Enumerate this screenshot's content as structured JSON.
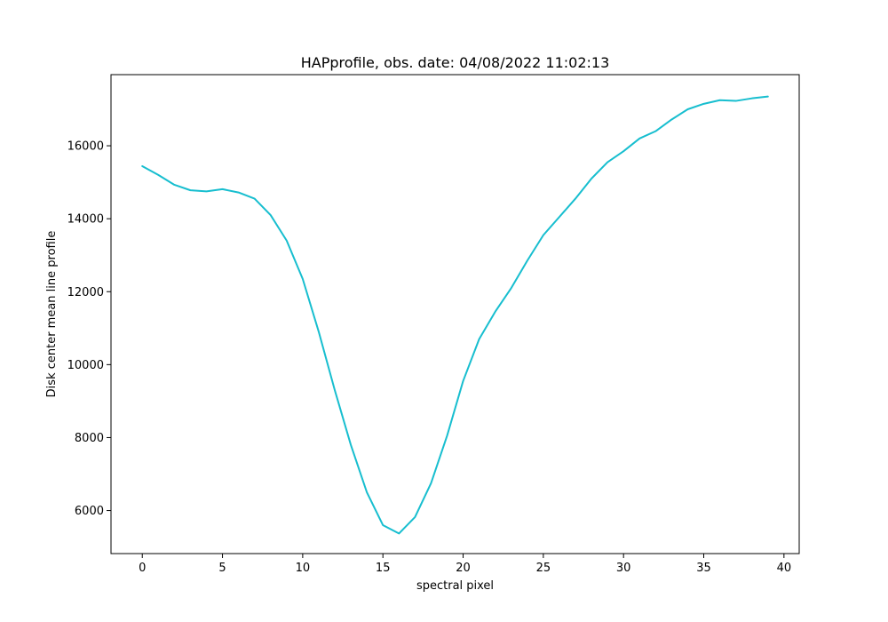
{
  "chart_data": {
    "type": "line",
    "title": "HAPprofile, obs. date: 04/08/2022 11:02:13",
    "xlabel": "spectral pixel",
    "ylabel": "Disk center mean line profile",
    "xlim": [
      -1.95,
      40.95
    ],
    "ylim": [
      4820,
      17950
    ],
    "xticks": [
      0,
      5,
      10,
      15,
      20,
      25,
      30,
      35,
      40
    ],
    "xtick_labels": [
      "0",
      "5",
      "10",
      "15",
      "20",
      "25",
      "30",
      "35",
      "40"
    ],
    "yticks": [
      6000,
      8000,
      10000,
      12000,
      14000,
      16000
    ],
    "ytick_labels": [
      "6000",
      "8000",
      "10000",
      "12000",
      "14000",
      "16000"
    ],
    "grid": false,
    "series": [
      {
        "color": "#17becf",
        "x": [
          0,
          1,
          2,
          3,
          4,
          5,
          6,
          7,
          8,
          9,
          10,
          11,
          12,
          13,
          14,
          15,
          16,
          17,
          18,
          19,
          20,
          21,
          22,
          23,
          24,
          25,
          26,
          27,
          28,
          29,
          30,
          31,
          32,
          33,
          34,
          35,
          36,
          37,
          38,
          39
        ],
        "y": [
          15440,
          15200,
          14930,
          14780,
          14750,
          14810,
          14720,
          14550,
          14100,
          13400,
          12350,
          10900,
          9300,
          7800,
          6500,
          5600,
          5370,
          5820,
          6750,
          8050,
          9550,
          10700,
          11450,
          12100,
          12850,
          13550,
          14050,
          14550,
          15100,
          15550,
          15850,
          16200,
          16400,
          16720,
          17000,
          17150,
          17250,
          17230,
          17300,
          17350
        ]
      }
    ]
  }
}
